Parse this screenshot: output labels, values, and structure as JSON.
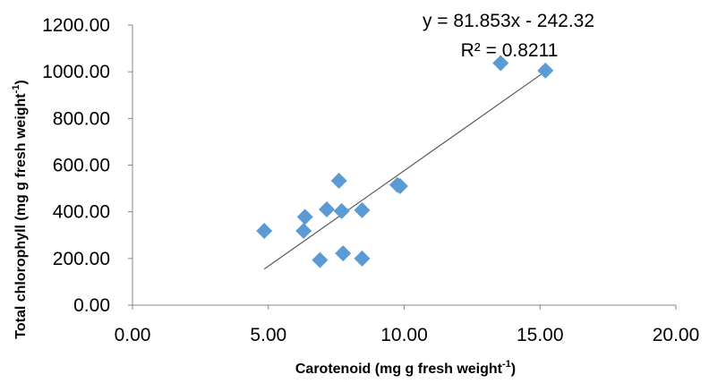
{
  "chart_data": {
    "type": "scatter",
    "xlabel": "Carotenoid  (mg g fresh weight",
    "xlabel_sup": "-1",
    "xlabel_end": ")",
    "ylabel": "Total chlorophyll  (mg g fresh weight",
    "ylabel_sup": "-1",
    "ylabel_end": ")",
    "xlim": [
      0,
      20
    ],
    "ylim": [
      0,
      1200
    ],
    "xticks": [
      "0.00",
      "5.00",
      "10.00",
      "15.00",
      "20.00"
    ],
    "yticks": [
      "0.00",
      "200.00",
      "400.00",
      "600.00",
      "800.00",
      "1000.00",
      "1200.00"
    ],
    "xtick_values": [
      0,
      5,
      10,
      15,
      20
    ],
    "ytick_values": [
      0,
      200,
      400,
      600,
      800,
      1000,
      1200
    ],
    "grid": false,
    "legend": "none",
    "marker": "diamond",
    "marker_color": "#5B9BD5",
    "trendline_color": "#595959",
    "points": [
      {
        "x": 4.85,
        "y": 318
      },
      {
        "x": 6.3,
        "y": 318
      },
      {
        "x": 6.35,
        "y": 378
      },
      {
        "x": 6.9,
        "y": 193
      },
      {
        "x": 7.15,
        "y": 410
      },
      {
        "x": 7.6,
        "y": 533
      },
      {
        "x": 7.7,
        "y": 403
      },
      {
        "x": 7.75,
        "y": 222
      },
      {
        "x": 8.45,
        "y": 407
      },
      {
        "x": 8.45,
        "y": 200
      },
      {
        "x": 9.75,
        "y": 515
      },
      {
        "x": 9.85,
        "y": 510
      },
      {
        "x": 13.55,
        "y": 1037
      },
      {
        "x": 15.2,
        "y": 1005
      }
    ],
    "trendline": {
      "slope": 81.853,
      "intercept": -242.32,
      "x_range": [
        4.85,
        15.2
      ],
      "equation": "y = 81.853x - 242.32",
      "r2_label": "R² = 0.8211"
    }
  }
}
